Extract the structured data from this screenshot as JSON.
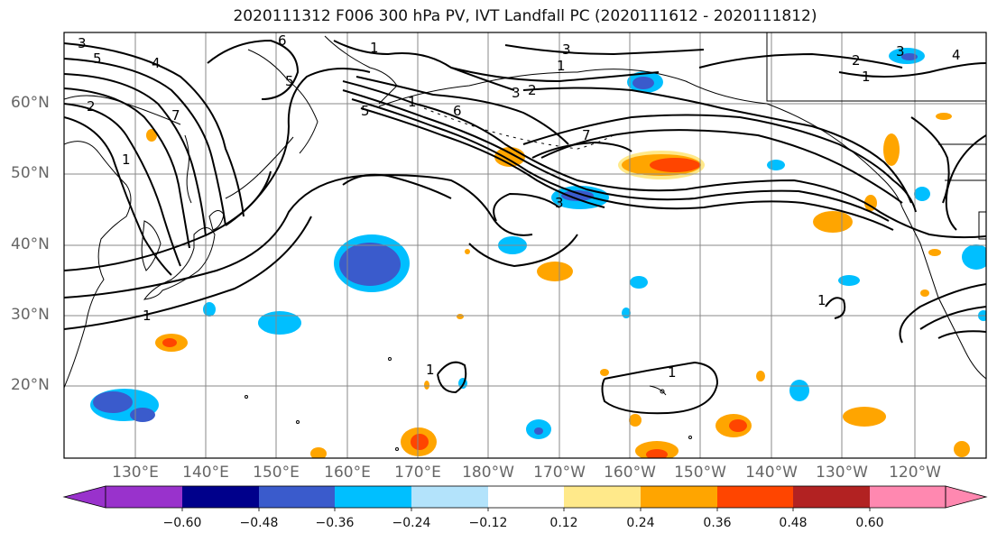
{
  "title": "2020111312 F006 300 hPa PV, IVT Landfall PC (2020111612 - 2020111812)",
  "lat_labels": [
    "60°N",
    "50°N",
    "40°N",
    "30°N",
    "20°N"
  ],
  "lon_labels": [
    "130°E",
    "140°E",
    "150°E",
    "160°E",
    "170°E",
    "180°W",
    "170°W",
    "160°W",
    "150°W",
    "140°W",
    "130°W",
    "120°W"
  ],
  "contour_labels": [
    "3",
    "5",
    "4",
    "6",
    "5",
    "1",
    "3",
    "2",
    "7",
    "2",
    "1",
    "6",
    "3",
    "7",
    "5",
    "1",
    "3",
    "1",
    "1",
    "1",
    "1",
    "1",
    "2",
    "4",
    "3",
    "1"
  ],
  "colorbar": {
    "ticks": [
      "−0.60",
      "−0.48",
      "−0.36",
      "−0.24",
      "−0.12",
      "0.12",
      "0.24",
      "0.36",
      "0.48",
      "0.60"
    ],
    "colors": [
      "#9932cc",
      "#00008b",
      "#3a5bcc",
      "#00bfff",
      "#b3e3fb",
      "#ffffff",
      "#ffe98a",
      "#ffa500",
      "#ff4500",
      "#b22222",
      "#ff88b0"
    ]
  },
  "colors": {
    "contour": "#000000",
    "coast": "#000000",
    "grid": "#888888"
  }
}
